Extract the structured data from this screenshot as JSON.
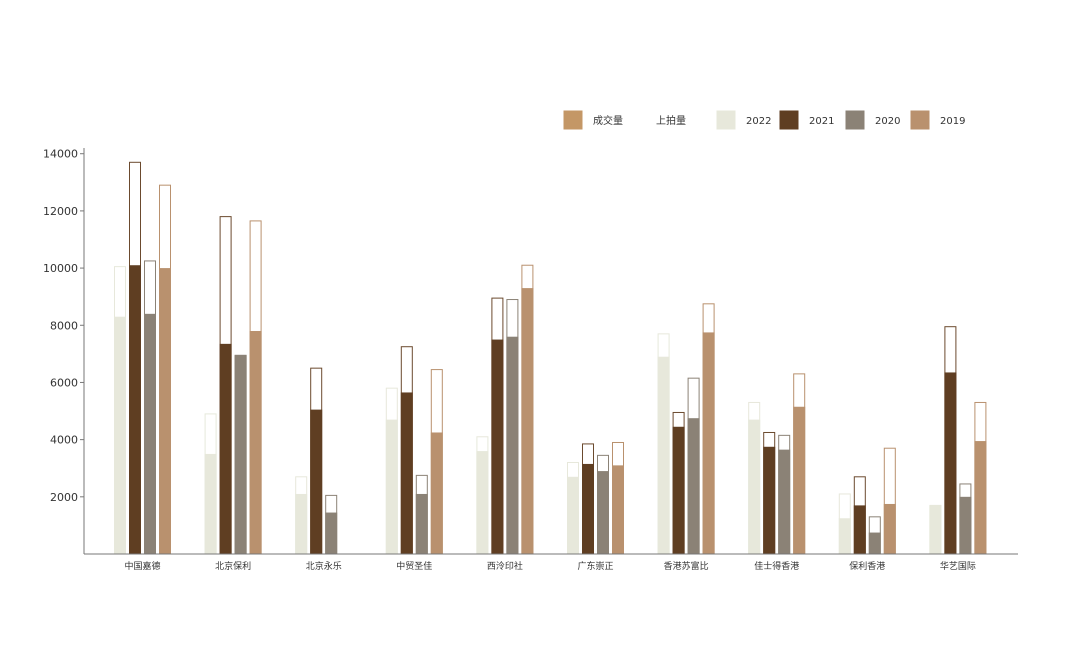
{
  "chart_data": {
    "type": "bar",
    "legend": {
      "position": "top-right",
      "items": [
        {
          "label": "成交量",
          "color": "#c49766"
        },
        {
          "label": "上拍量",
          "color": "#ffffff"
        },
        {
          "label": "2022",
          "color": "#e7e8db"
        },
        {
          "label": "2021",
          "color": "#5f3e22"
        },
        {
          "label": "2020",
          "color": "#8b8276"
        },
        {
          "label": "2019",
          "color": "#b9916e"
        }
      ]
    },
    "y_ticks": [
      "2000",
      "4000",
      "6000",
      "8000",
      "10000",
      "12000",
      "14000"
    ],
    "ylim": [
      0,
      14200
    ],
    "grid": false,
    "categories": [
      "中国嘉德",
      "北京保利",
      "北京永乐",
      "中贸圣佳",
      "西泠印社",
      "广东崇正",
      "香港苏富比",
      "佳士得香港",
      "保利香港",
      "华艺国际"
    ],
    "series": [
      {
        "name": "2022",
        "color": "#e7e8db",
        "outline": "#e7e8db",
        "transacted": [
          8300,
          3500,
          2100,
          4700,
          3600,
          2700,
          6900,
          4700,
          1250,
          1700
        ],
        "listed": [
          10050,
          4900,
          2700,
          5800,
          4100,
          3200,
          7700,
          5300,
          2100,
          1700
        ]
      },
      {
        "name": "2021",
        "color": "#5f3e22",
        "outline": "#6b4a2e",
        "transacted": [
          10100,
          7350,
          5050,
          5650,
          7500,
          3150,
          4450,
          3750,
          1700,
          6350
        ],
        "listed": [
          13700,
          11800,
          6500,
          7250,
          8950,
          3850,
          4950,
          4250,
          2700,
          7950
        ]
      },
      {
        "name": "2020",
        "color": "#8b8276",
        "outline": "#8b8276",
        "transacted": [
          8400,
          6950,
          1450,
          2100,
          7600,
          2900,
          4750,
          3650,
          750,
          2000
        ],
        "listed": [
          10250,
          6950,
          2050,
          2750,
          8900,
          3450,
          6150,
          4150,
          1300,
          2450
        ]
      },
      {
        "name": "2019",
        "color": "#b9916e",
        "outline": "#b9916e",
        "transacted": [
          10000,
          7800,
          0,
          4250,
          9300,
          3100,
          7750,
          5150,
          1750,
          3950
        ],
        "listed": [
          12900,
          11650,
          0,
          6450,
          10100,
          3900,
          8750,
          6300,
          3700,
          5300
        ]
      }
    ]
  }
}
